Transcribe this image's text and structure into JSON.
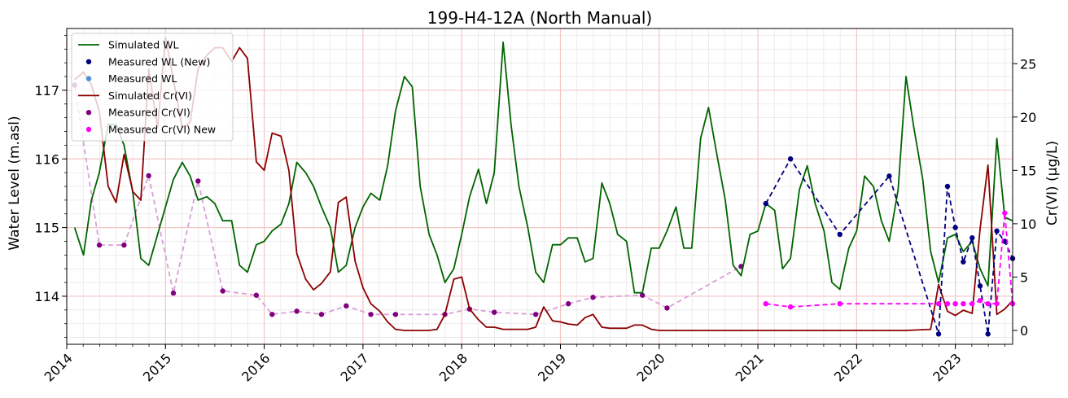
{
  "chart_data": {
    "type": "line",
    "title": "199-H4-12A (North Manual)",
    "ylabel": "Water Level (m.asl)",
    "y2label": "Cr(VI) (µg/L)",
    "xlabel": "",
    "xlim": [
      2014.0,
      2023.58
    ],
    "ylim": [
      113.3,
      117.9
    ],
    "y2lim": [
      -1.3,
      28.3
    ],
    "x_ticks": [
      2014,
      2015,
      2016,
      2017,
      2018,
      2019,
      2020,
      2021,
      2022,
      2023
    ],
    "x_tick_labels": [
      "2014",
      "2015",
      "2016",
      "2017",
      "2018",
      "2019",
      "2020",
      "2021",
      "2022",
      "2023"
    ],
    "y_ticks": [
      114,
      115,
      116,
      117
    ],
    "y_tick_labels": [
      "114",
      "115",
      "116",
      "117"
    ],
    "y2_ticks": [
      0,
      5,
      10,
      15,
      20,
      25
    ],
    "y2_tick_labels": [
      "0",
      "5",
      "10",
      "15",
      "20",
      "25"
    ],
    "grid": true,
    "legend_position": "top-left",
    "colors": {
      "simulated_wl": "#006400",
      "measured_wl_new": "#000080",
      "measured_wl": "#4a90d9",
      "simulated_cr": "#8b0000",
      "measured_cr": "#800080",
      "measured_cr_dashed": "#d8a0d8",
      "measured_cr_new": "#ff00ff",
      "major_grid": "#f5c6c6",
      "minor_grid": "#e8e8e8"
    },
    "series": [
      {
        "name": "Simulated WL",
        "axis": "left",
        "style": "line",
        "x": [
          2014.08,
          2014.17,
          2014.25,
          2014.33,
          2014.42,
          2014.5,
          2014.58,
          2014.67,
          2014.75,
          2014.83,
          2014.92,
          2015.0,
          2015.08,
          2015.17,
          2015.25,
          2015.33,
          2015.42,
          2015.5,
          2015.58,
          2015.67,
          2015.75,
          2015.83,
          2015.92,
          2016.0,
          2016.08,
          2016.17,
          2016.25,
          2016.33,
          2016.42,
          2016.5,
          2016.58,
          2016.67,
          2016.75,
          2016.83,
          2016.92,
          2017.0,
          2017.08,
          2017.17,
          2017.25,
          2017.33,
          2017.42,
          2017.5,
          2017.58,
          2017.67,
          2017.75,
          2017.83,
          2017.92,
          2018.0,
          2018.08,
          2018.17,
          2018.25,
          2018.33,
          2018.42,
          2018.5,
          2018.58,
          2018.67,
          2018.75,
          2018.83,
          2018.92,
          2019.0,
          2019.08,
          2019.17,
          2019.25,
          2019.33,
          2019.42,
          2019.5,
          2019.58,
          2019.67,
          2019.75,
          2019.83,
          2019.92,
          2020.0,
          2020.08,
          2020.17,
          2020.25,
          2020.33,
          2020.42,
          2020.5,
          2020.58,
          2020.67,
          2020.75,
          2020.83,
          2020.92,
          2021.0,
          2021.08,
          2021.17,
          2021.25,
          2021.33,
          2021.42,
          2021.5,
          2021.58,
          2021.67,
          2021.75,
          2021.83,
          2021.92,
          2022.0,
          2022.08,
          2022.17,
          2022.25,
          2022.33,
          2022.42,
          2022.5,
          2022.58,
          2022.67,
          2022.75,
          2022.83,
          2022.92,
          2023.0,
          2023.08,
          2023.17,
          2023.25,
          2023.33,
          2023.42,
          2023.5,
          2023.58
        ],
        "values": [
          115.0,
          114.6,
          115.4,
          115.8,
          116.5,
          116.5,
          116.2,
          115.5,
          114.55,
          114.45,
          114.9,
          115.3,
          115.7,
          115.95,
          115.75,
          115.4,
          115.45,
          115.35,
          115.1,
          115.1,
          114.45,
          114.35,
          114.75,
          114.8,
          114.95,
          115.05,
          115.35,
          115.95,
          115.8,
          115.6,
          115.3,
          115.0,
          114.35,
          114.45,
          115.0,
          115.3,
          115.5,
          115.4,
          115.9,
          116.7,
          117.2,
          117.05,
          115.6,
          114.9,
          114.6,
          114.2,
          114.4,
          114.9,
          115.45,
          115.85,
          115.35,
          115.8,
          117.7,
          116.5,
          115.6,
          115.0,
          114.35,
          114.2,
          114.75,
          114.75,
          114.85,
          114.85,
          114.5,
          114.55,
          115.65,
          115.35,
          114.9,
          114.8,
          114.05,
          114.05,
          114.7,
          114.7,
          114.95,
          115.3,
          114.7,
          114.7,
          116.3,
          116.75,
          116.1,
          115.4,
          114.45,
          114.3,
          114.9,
          114.95,
          115.35,
          115.25,
          114.4,
          114.55,
          115.55,
          115.9,
          115.35,
          114.95,
          114.2,
          114.1,
          114.7,
          114.95,
          115.75,
          115.6,
          115.1,
          114.8,
          115.55,
          117.2,
          116.45,
          115.7,
          114.65,
          114.2,
          114.85,
          114.9,
          114.65,
          114.8,
          114.4,
          114.15,
          116.3,
          115.15,
          115.1
        ]
      },
      {
        "name": "Measured WL (New)",
        "axis": "left",
        "style": "dashed-markers",
        "x": [
          2021.08,
          2021.33,
          2021.83,
          2022.33,
          2022.83,
          2022.92,
          2023.0,
          2023.08,
          2023.17,
          2023.25,
          2023.33,
          2023.42,
          2023.5,
          2023.58
        ],
        "values": [
          115.35,
          116.0,
          114.9,
          115.75,
          113.45,
          115.6,
          115.0,
          114.5,
          114.85,
          114.15,
          113.45,
          114.95,
          114.8,
          114.55
        ]
      },
      {
        "name": "Measured WL",
        "axis": "left",
        "style": "markers",
        "x": [],
        "values": []
      },
      {
        "name": "Simulated Cr(VI)",
        "axis": "right",
        "style": "line",
        "x": [
          2014.08,
          2014.17,
          2014.25,
          2014.33,
          2014.42,
          2014.5,
          2014.58,
          2014.67,
          2014.75,
          2014.83,
          2014.92,
          2015.0,
          2015.08,
          2015.17,
          2015.25,
          2015.33,
          2015.42,
          2015.5,
          2015.58,
          2015.67,
          2015.75,
          2015.83,
          2015.92,
          2016.0,
          2016.08,
          2016.17,
          2016.25,
          2016.33,
          2016.42,
          2016.5,
          2016.58,
          2016.67,
          2016.75,
          2016.83,
          2016.92,
          2017.0,
          2017.08,
          2017.17,
          2017.25,
          2017.33,
          2017.42,
          2017.5,
          2017.58,
          2017.67,
          2017.75,
          2017.83,
          2017.92,
          2018.0,
          2018.08,
          2018.17,
          2018.25,
          2018.33,
          2018.42,
          2018.5,
          2018.58,
          2018.67,
          2018.75,
          2018.83,
          2018.92,
          2019.0,
          2019.08,
          2019.17,
          2019.25,
          2019.33,
          2019.42,
          2019.5,
          2019.58,
          2019.67,
          2019.75,
          2019.83,
          2019.92,
          2020.0,
          2020.5,
          2021.0,
          2021.5,
          2022.0,
          2022.5,
          2022.75,
          2022.83,
          2022.92,
          2023.0,
          2023.08,
          2023.17,
          2023.25,
          2023.33,
          2023.42,
          2023.5,
          2023.58
        ],
        "values": [
          23.5,
          24.2,
          23.0,
          20.5,
          13.5,
          12.0,
          16.5,
          13.0,
          12.2,
          24.5,
          19.0,
          27.5,
          23.5,
          19.0,
          19.5,
          24.5,
          25.8,
          26.5,
          26.5,
          25.2,
          26.5,
          25.5,
          15.8,
          15.0,
          18.5,
          18.2,
          15.0,
          7.2,
          4.8,
          3.8,
          4.4,
          5.5,
          12.0,
          12.5,
          6.5,
          4.0,
          2.5,
          1.8,
          0.8,
          0.1,
          0.0,
          0.0,
          0.0,
          0.0,
          0.1,
          1.5,
          4.8,
          5.0,
          2.0,
          1.0,
          0.3,
          0.3,
          0.1,
          0.1,
          0.1,
          0.1,
          0.3,
          2.2,
          0.9,
          0.8,
          0.6,
          0.5,
          1.2,
          1.5,
          0.3,
          0.2,
          0.2,
          0.2,
          0.5,
          0.5,
          0.1,
          0.0,
          0.0,
          0.0,
          0.0,
          0.0,
          0.0,
          0.1,
          4.3,
          1.8,
          1.4,
          1.9,
          1.6,
          9.5,
          15.5,
          1.5,
          2.0,
          2.8
        ]
      },
      {
        "name": "Measured Cr(VI)",
        "axis": "right",
        "style": "dashed-markers",
        "x": [
          2014.08,
          2014.33,
          2014.58,
          2014.83,
          2015.08,
          2015.33,
          2015.58,
          2015.92,
          2016.08,
          2016.33,
          2016.58,
          2016.83,
          2017.08,
          2017.33,
          2017.83,
          2018.08,
          2018.33,
          2018.75,
          2019.08,
          2019.33,
          2019.83,
          2020.08,
          2020.83
        ],
        "values": [
          23.0,
          8.0,
          8.0,
          14.5,
          3.5,
          14.0,
          3.7,
          3.3,
          1.5,
          1.8,
          1.5,
          2.3,
          1.5,
          1.5,
          1.5,
          2.0,
          1.7,
          1.5,
          2.5,
          3.1,
          3.3,
          2.1,
          6.0
        ]
      },
      {
        "name": "Measured Cr(VI) New",
        "axis": "right",
        "style": "dashed-markers",
        "x": [
          2021.08,
          2021.33,
          2021.83,
          2022.83,
          2022.92,
          2023.0,
          2023.08,
          2023.17,
          2023.25,
          2023.33,
          2023.42,
          2023.5,
          2023.58
        ],
        "values": [
          2.5,
          2.2,
          2.5,
          2.5,
          2.5,
          2.5,
          2.5,
          2.5,
          2.8,
          2.5,
          2.5,
          11.0,
          2.5
        ]
      }
    ]
  }
}
